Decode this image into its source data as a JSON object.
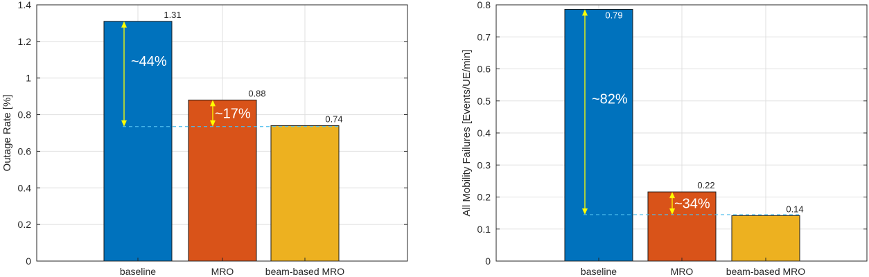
{
  "chart_data": [
    {
      "type": "bar",
      "title": "",
      "xlabel": "",
      "ylabel": "Outage Rate [%]",
      "ylim": [
        0,
        1.4
      ],
      "yticks": [
        0,
        0.2,
        0.4,
        0.6,
        0.8,
        1,
        1.2,
        1.4
      ],
      "ytick_labels": [
        "0",
        "0.2",
        "0.4",
        "0.6",
        "0.8",
        "1",
        "1.2",
        "1.4"
      ],
      "categories": [
        "baseline",
        "MRO",
        "beam-based MRO"
      ],
      "values": [
        1.31,
        0.88,
        0.74
      ],
      "value_labels": [
        "1.31",
        "0.88",
        "0.74"
      ],
      "colors": [
        "#0072BD",
        "#D95319",
        "#EDB120"
      ],
      "grid": true,
      "reference_line": 0.735,
      "annotations": [
        {
          "text": "~44%",
          "category": 0,
          "from": 1.31,
          "to": 0.735
        },
        {
          "text": "~17%",
          "category": 1,
          "from": 0.88,
          "to": 0.735
        }
      ]
    },
    {
      "type": "bar",
      "title": "",
      "xlabel": "",
      "ylabel": "All Mobility Failures [Events/UE/min]",
      "ylim": [
        0,
        0.8
      ],
      "yticks": [
        0,
        0.1,
        0.2,
        0.3,
        0.4,
        0.5,
        0.6,
        0.7,
        0.8
      ],
      "ytick_labels": [
        "0",
        "0.1",
        "0.2",
        "0.3",
        "0.4",
        "0.5",
        "0.6",
        "0.7",
        "0.8"
      ],
      "categories": [
        "baseline",
        "MRO",
        "beam-based MRO"
      ],
      "values": [
        0.786,
        0.216,
        0.142
      ],
      "value_labels": [
        "0.79",
        "0.22",
        "0.14"
      ],
      "colors": [
        "#0072BD",
        "#D95319",
        "#EDB120"
      ],
      "grid": true,
      "reference_line": 0.145,
      "annotations": [
        {
          "text": "~82%",
          "category": 0,
          "from": 0.786,
          "to": 0.145
        },
        {
          "text": "~34%",
          "category": 1,
          "from": 0.216,
          "to": 0.145
        }
      ]
    }
  ]
}
